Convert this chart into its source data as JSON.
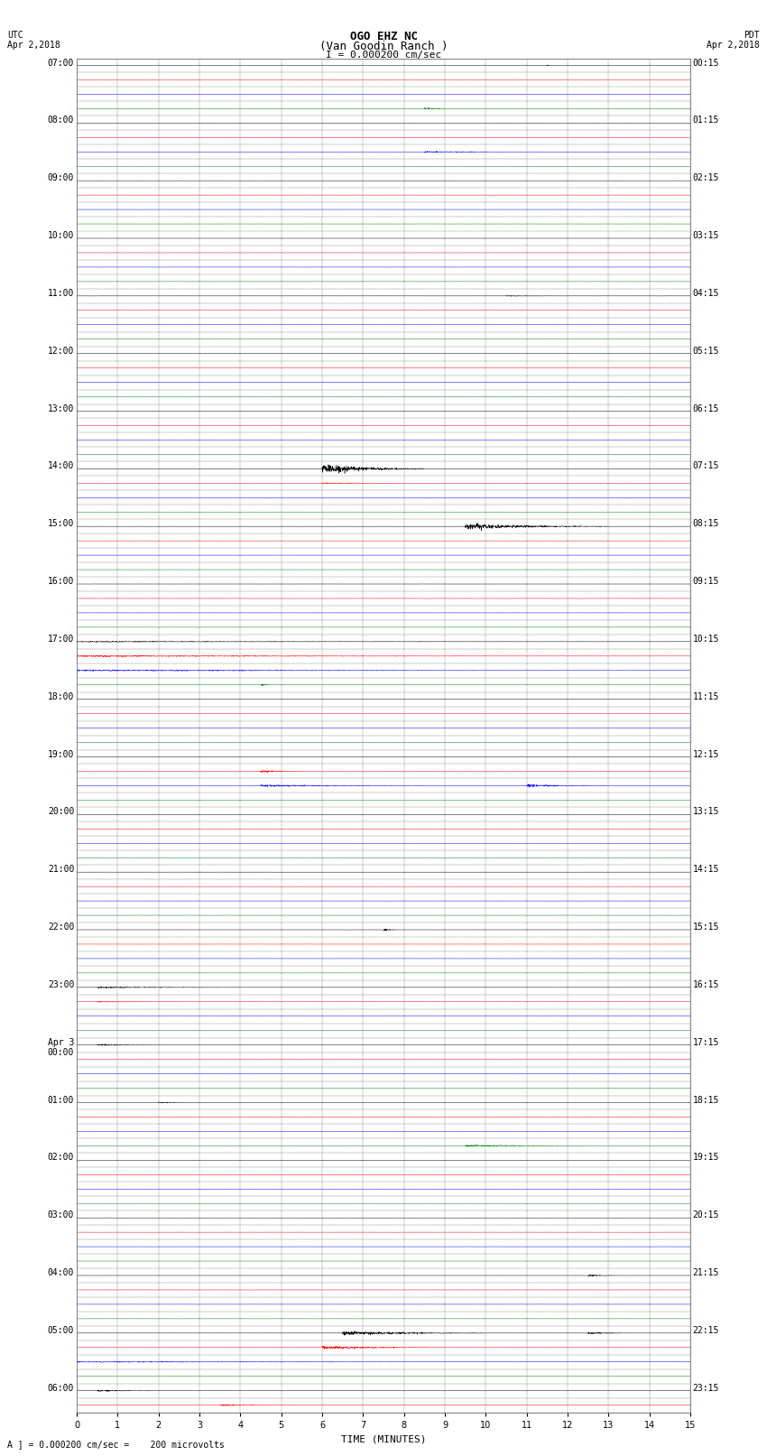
{
  "title_line1": "OGO EHZ NC",
  "title_line2": "(Van Goodin Ranch )",
  "title_scale": "I = 0.000200 cm/sec",
  "utc_label": "UTC",
  "utc_date": "Apr 2,2018",
  "pdt_label": "PDT",
  "pdt_date": "Apr 2,2018",
  "xlabel": "TIME (MINUTES)",
  "footer": "A ] = 0.000200 cm/sec =    200 microvolts",
  "left_times": [
    "07:00",
    "",
    "",
    "",
    "08:00",
    "",
    "",
    "",
    "09:00",
    "",
    "",
    "",
    "10:00",
    "",
    "",
    "",
    "11:00",
    "",
    "",
    "",
    "12:00",
    "",
    "",
    "",
    "13:00",
    "",
    "",
    "",
    "14:00",
    "",
    "",
    "",
    "15:00",
    "",
    "",
    "",
    "16:00",
    "",
    "",
    "",
    "17:00",
    "",
    "",
    "",
    "18:00",
    "",
    "",
    "",
    "19:00",
    "",
    "",
    "",
    "20:00",
    "",
    "",
    "",
    "21:00",
    "",
    "",
    "",
    "22:00",
    "",
    "",
    "",
    "23:00",
    "",
    "",
    "",
    "Apr 3\n00:00",
    "",
    "",
    "",
    "01:00",
    "",
    "",
    "",
    "02:00",
    "",
    "",
    "",
    "03:00",
    "",
    "",
    "",
    "04:00",
    "",
    "",
    "",
    "05:00",
    "",
    "",
    "",
    "06:00",
    ""
  ],
  "right_times": [
    "00:15",
    "",
    "",
    "",
    "01:15",
    "",
    "",
    "",
    "02:15",
    "",
    "",
    "",
    "03:15",
    "",
    "",
    "",
    "04:15",
    "",
    "",
    "",
    "05:15",
    "",
    "",
    "",
    "06:15",
    "",
    "",
    "",
    "07:15",
    "",
    "",
    "",
    "08:15",
    "",
    "",
    "",
    "09:15",
    "",
    "",
    "",
    "10:15",
    "",
    "",
    "",
    "11:15",
    "",
    "",
    "",
    "12:15",
    "",
    "",
    "",
    "13:15",
    "",
    "",
    "",
    "14:15",
    "",
    "",
    "",
    "15:15",
    "",
    "",
    "",
    "16:15",
    "",
    "",
    "",
    "17:15",
    "",
    "",
    "",
    "18:15",
    "",
    "",
    "",
    "19:15",
    "",
    "",
    "",
    "20:15",
    "",
    "",
    "",
    "21:15",
    "",
    "",
    "",
    "22:15",
    "",
    "",
    "",
    "23:15",
    ""
  ],
  "num_rows": 94,
  "x_min": 0,
  "x_max": 15,
  "x_ticks": [
    0,
    1,
    2,
    3,
    4,
    5,
    6,
    7,
    8,
    9,
    10,
    11,
    12,
    13,
    14,
    15
  ],
  "bg_color": "#ffffff",
  "grid_color": "#888888",
  "line_colors_cycle": [
    "black",
    "red",
    "blue",
    "green"
  ],
  "title_fontsize": 9,
  "tick_fontsize": 7,
  "footer_fontsize": 7,
  "noise_scale": 0.004,
  "row_amplitude": 0.3
}
